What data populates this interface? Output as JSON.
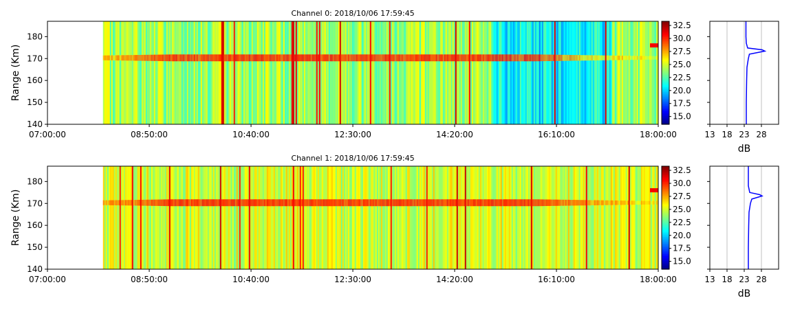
{
  "chart_data": [
    {
      "type": "heatmap",
      "title": "Channel 0: 2018/10/06 17:59:45",
      "xlabel": "",
      "ylabel": "Range (Km)",
      "x_ticks": [
        "07:00:00",
        "08:50:00",
        "10:40:00",
        "12:30:00",
        "14:20:00",
        "16:10:00",
        "18:00:00"
      ],
      "x_range": [
        "07:00:00",
        "18:00:00"
      ],
      "data_start": "08:00:00",
      "y_ticks": [
        140,
        150,
        160,
        170,
        180
      ],
      "ylim": [
        140,
        187
      ],
      "colorbar": {
        "colormap": "jet",
        "range": [
          13.5,
          33.3
        ],
        "ticks": [
          "15.0",
          "17.5",
          "20.0",
          "22.5",
          "25.0",
          "27.5",
          "30.0",
          "32.5"
        ]
      },
      "features": {
        "echo_band_range": 170,
        "echo_peak_db": 31,
        "background_db": [
          22,
          26
        ],
        "late_echo_range": 176,
        "low_power_interval": [
          "15:00:00",
          "17:10:00"
        ]
      },
      "profile": {
        "xlabel": "dB",
        "x_ticks": [
          13,
          18,
          23,
          28
        ],
        "xlim": [
          13,
          33
        ],
        "grid": true,
        "points": [
          {
            "range": 140,
            "db": 23.6
          },
          {
            "range": 150,
            "db": 23.6
          },
          {
            "range": 160,
            "db": 23.7
          },
          {
            "range": 166,
            "db": 23.8
          },
          {
            "range": 168,
            "db": 24.0
          },
          {
            "range": 170,
            "db": 24.2
          },
          {
            "range": 172,
            "db": 24.5
          },
          {
            "range": 173.4,
            "db": 29.0
          },
          {
            "range": 174,
            "db": 28.2
          },
          {
            "range": 174.8,
            "db": 24.0
          },
          {
            "range": 177,
            "db": 23.6
          },
          {
            "range": 180,
            "db": 23.5
          },
          {
            "range": 187,
            "db": 23.5
          }
        ]
      }
    },
    {
      "type": "heatmap",
      "title": "Channel 1: 2018/10/06 17:59:45",
      "xlabel": "",
      "ylabel": "Range (Km)",
      "x_ticks": [
        "07:00:00",
        "08:50:00",
        "10:40:00",
        "12:30:00",
        "14:20:00",
        "16:10:00",
        "18:00:00"
      ],
      "x_range": [
        "07:00:00",
        "18:00:00"
      ],
      "data_start": "08:00:00",
      "y_ticks": [
        140,
        150,
        160,
        170,
        180
      ],
      "ylim": [
        140,
        187
      ],
      "colorbar": {
        "colormap": "jet",
        "range": [
          13.5,
          33.3
        ],
        "ticks": [
          "15.0",
          "17.5",
          "20.0",
          "22.5",
          "25.0",
          "27.5",
          "30.0",
          "32.5"
        ]
      },
      "features": {
        "echo_band_range": 170,
        "echo_peak_db": 31,
        "background_db": [
          23,
          27
        ],
        "late_echo_range": 176,
        "low_power_interval": []
      },
      "profile": {
        "xlabel": "dB",
        "x_ticks": [
          13,
          18,
          23,
          28
        ],
        "xlim": [
          13,
          33
        ],
        "grid": true,
        "points": [
          {
            "range": 140,
            "db": 24.2
          },
          {
            "range": 150,
            "db": 24.2
          },
          {
            "range": 160,
            "db": 24.3
          },
          {
            "range": 166,
            "db": 24.4
          },
          {
            "range": 170,
            "db": 24.8
          },
          {
            "range": 172,
            "db": 25.2
          },
          {
            "range": 173.4,
            "db": 28.2
          },
          {
            "range": 174,
            "db": 27.5
          },
          {
            "range": 175,
            "db": 24.6
          },
          {
            "range": 178,
            "db": 24.2
          },
          {
            "range": 187,
            "db": 24.2
          }
        ]
      }
    }
  ]
}
